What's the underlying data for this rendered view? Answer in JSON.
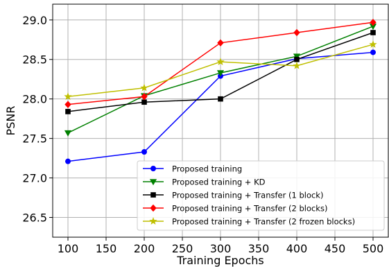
{
  "chart_data": {
    "type": "line",
    "xlabel": "Training Epochs",
    "ylabel": "PSNR",
    "xlim": [
      80,
      520
    ],
    "ylim": [
      26.25,
      29.2
    ],
    "x": [
      100,
      200,
      300,
      400,
      500
    ],
    "xticks": [
      "100",
      "150",
      "200",
      "250",
      "300",
      "350",
      "400",
      "450",
      "500"
    ],
    "yticks": [
      "26.5",
      "27.0",
      "27.5",
      "28.0",
      "28.5",
      "29.0"
    ],
    "grid": true,
    "legend_position": "lower-right",
    "series": [
      {
        "name": "Proposed training",
        "color": "#0000ff",
        "marker": "circle",
        "values": [
          27.21,
          27.33,
          28.29,
          28.51,
          28.59
        ]
      },
      {
        "name": "Proposed training + KD",
        "color": "#008000",
        "marker": "triangle-down",
        "values": [
          27.57,
          28.04,
          28.33,
          28.54,
          28.92
        ]
      },
      {
        "name": "Proposed training + Transfer (1 block)",
        "color": "#000000",
        "marker": "square",
        "values": [
          27.84,
          27.96,
          28.0,
          28.5,
          28.84
        ]
      },
      {
        "name": "Proposed training + Transfer (2 blocks)",
        "color": "#ff0000",
        "marker": "diamond",
        "values": [
          27.93,
          28.03,
          28.71,
          28.84,
          28.97
        ]
      },
      {
        "name": "Proposed training + Transfer (2 frozen blocks)",
        "color": "#bfbf00",
        "marker": "star",
        "values": [
          28.03,
          28.14,
          28.47,
          28.42,
          28.69
        ]
      }
    ]
  }
}
